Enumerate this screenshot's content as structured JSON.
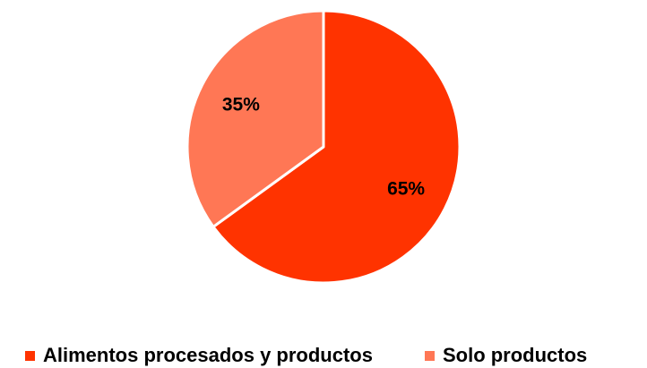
{
  "chart_data": {
    "type": "pie",
    "title": "",
    "slices": [
      {
        "label": "Alimentos procesados y productos",
        "value": 65,
        "display": "65%",
        "color": "#FF3300"
      },
      {
        "label": "Solo productos",
        "value": 35,
        "display": "35%",
        "color": "#FF7755"
      }
    ],
    "start_angle_deg": 0,
    "direction": "clockwise",
    "legend_position": "bottom"
  }
}
